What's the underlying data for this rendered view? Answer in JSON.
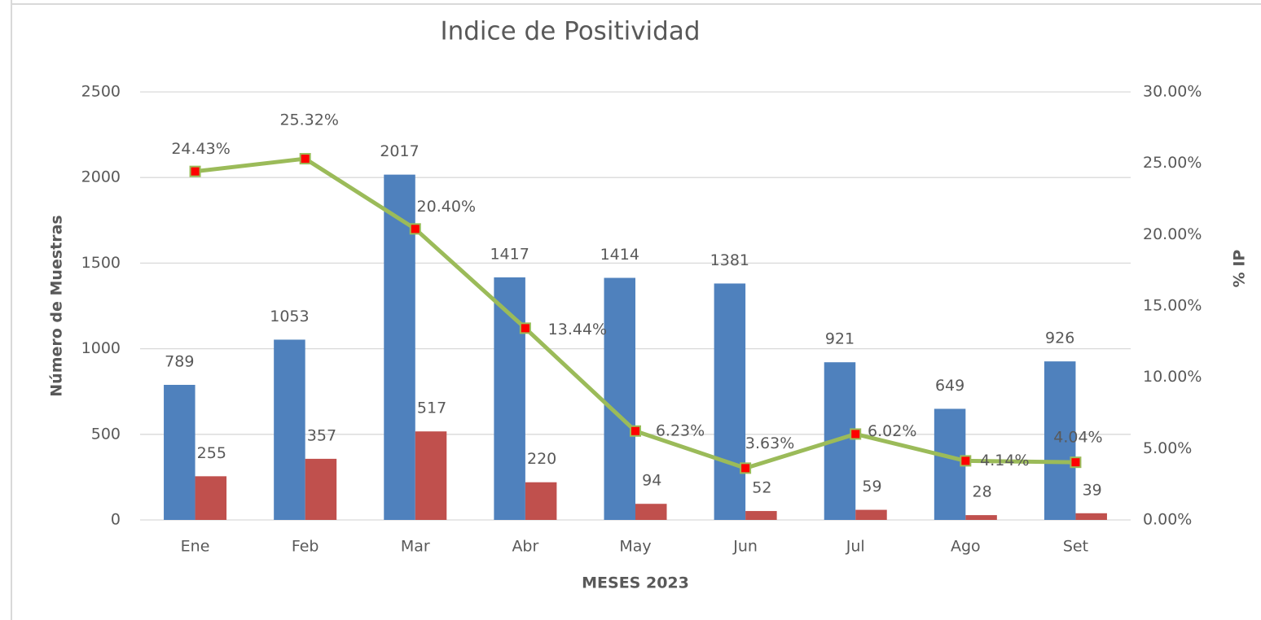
{
  "chart_data": {
    "type": "bar-line",
    "title": "Indice de Positividad",
    "x_label": "MESES 2023",
    "y_label": "Número de Muestras",
    "y2_label": "% IP",
    "categories": [
      "Ene",
      "Feb",
      "Mar",
      "Abr",
      "May",
      "Jun",
      "Jul",
      "Ago",
      "Set"
    ],
    "series": [
      {
        "type": "bar",
        "color": "#4f81bd",
        "values": [
          789,
          1053,
          2017,
          1417,
          1414,
          1381,
          921,
          649,
          926
        ]
      },
      {
        "type": "bar",
        "color": "#c0504d",
        "values": [
          255,
          357,
          517,
          220,
          94,
          52,
          59,
          28,
          39
        ]
      },
      {
        "type": "line",
        "axis": "y2",
        "color": "#9bbb59",
        "marker_color": "#ff0000",
        "values": [
          24.43,
          25.32,
          20.4,
          13.44,
          6.23,
          3.63,
          6.02,
          4.14,
          4.04
        ],
        "value_labels": [
          "24.43%",
          "25.32%",
          "20.40%",
          "13.44%",
          "6.23%",
          "3.63%",
          "6.02%",
          "4.14%",
          "4.04%"
        ]
      }
    ],
    "ylim": [
      0,
      2500
    ],
    "yticks": [
      0,
      500,
      1000,
      1500,
      2000,
      2500
    ],
    "y2lim": [
      0,
      30
    ],
    "y2ticks": [
      {
        "value": 0,
        "label": "0.00%"
      },
      {
        "value": 5,
        "label": "5.00%"
      },
      {
        "value": 10,
        "label": "10.00%"
      },
      {
        "value": 15,
        "label": "15.00%"
      },
      {
        "value": 20,
        "label": "20.00%"
      },
      {
        "value": 25,
        "label": "25.00%"
      },
      {
        "value": 30,
        "label": "30.00%"
      }
    ],
    "grid": true
  }
}
